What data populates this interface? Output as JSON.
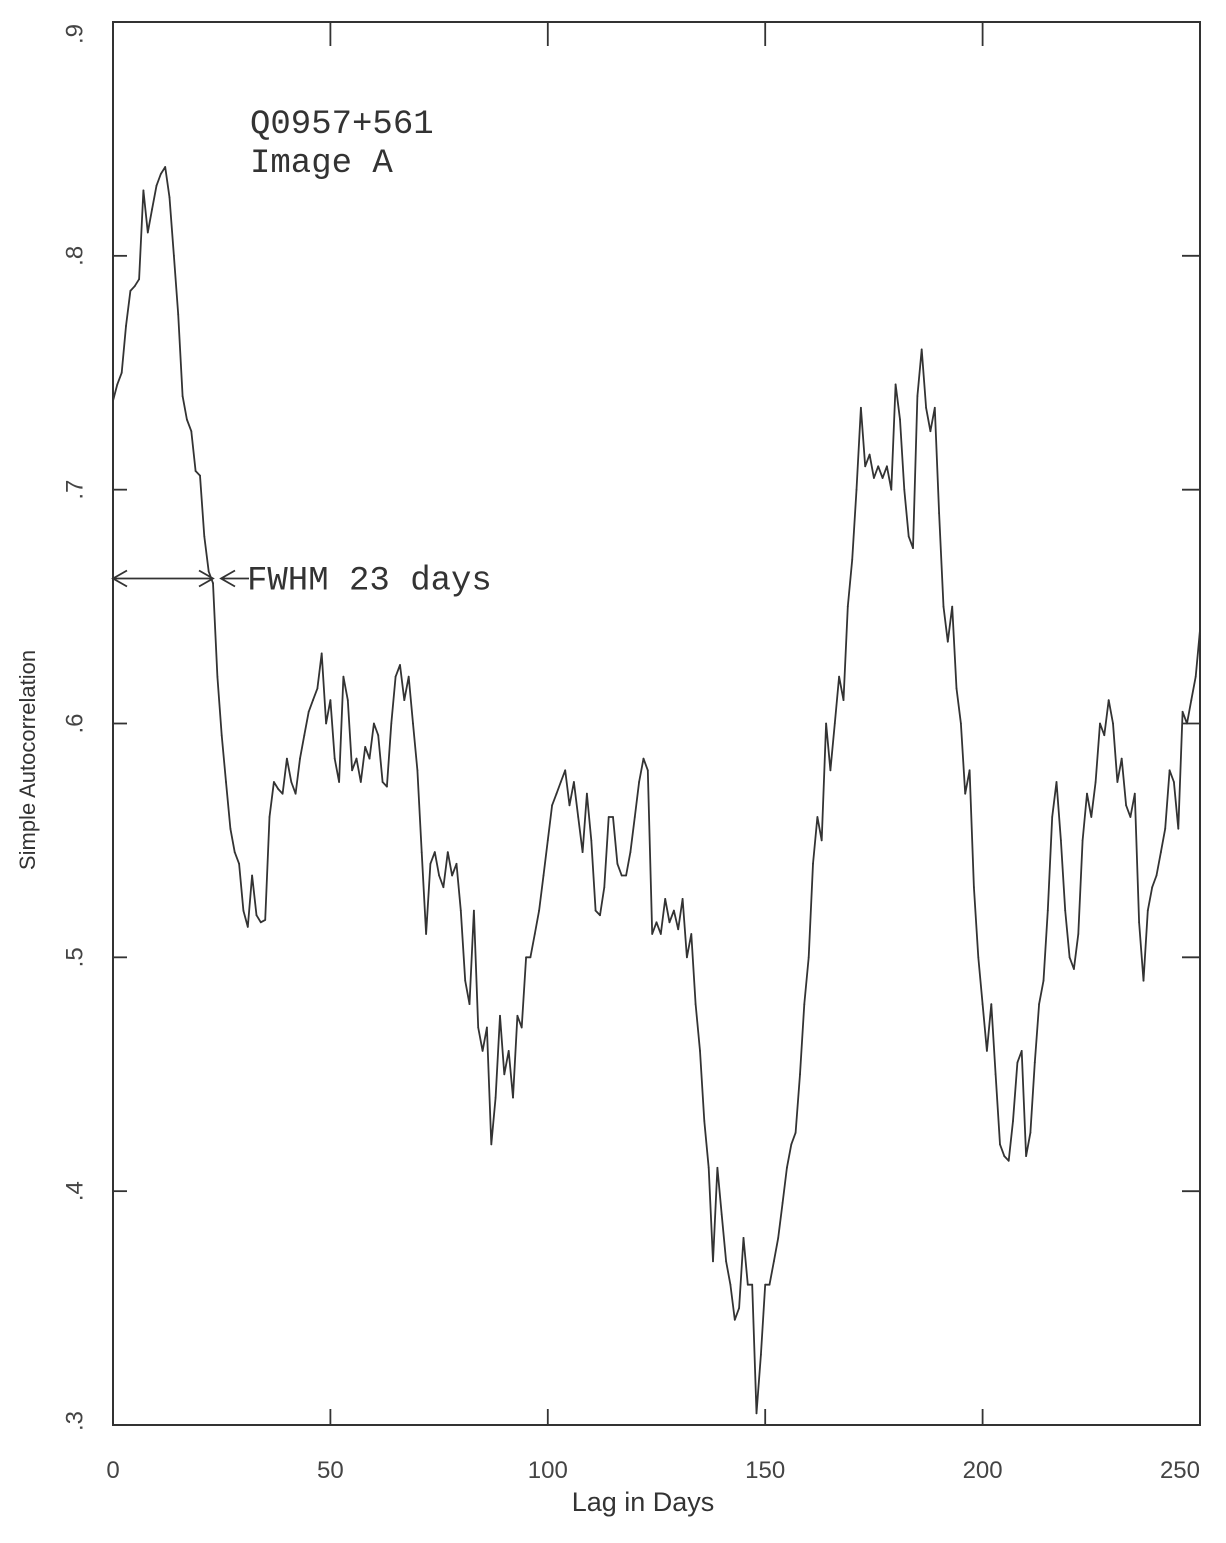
{
  "chart_data": {
    "type": "line",
    "title": "",
    "xlabel": "Lag in Days",
    "ylabel": "Simple Autocorrelation",
    "xlim": [
      0,
      250
    ],
    "ylim": [
      0.3,
      0.9
    ],
    "x_ticks": [
      0,
      50,
      100,
      150,
      200,
      250
    ],
    "x_tick_labels": [
      "0",
      "50",
      "100",
      "150",
      "200",
      "250"
    ],
    "y_ticks": [
      0.3,
      0.4,
      0.5,
      0.6,
      0.7,
      0.8,
      0.9
    ],
    "y_tick_labels": [
      ".3",
      ".4",
      ".5",
      ".6",
      ".7",
      ".8",
      ".9"
    ],
    "grid": false,
    "legend": "none",
    "annotation_lines": [
      "Q0957+561",
      "Image A"
    ],
    "fwhm_label": "FWHM 23 days",
    "fwhm_range": [
      0,
      23
    ],
    "fwhm_level": 0.662,
    "series": [
      {
        "points": [
          [
            0,
            0.738
          ],
          [
            1,
            0.745
          ],
          [
            2,
            0.75
          ],
          [
            3,
            0.77
          ],
          [
            4,
            0.785
          ],
          [
            5,
            0.787
          ],
          [
            6,
            0.79
          ],
          [
            7,
            0.828
          ],
          [
            8,
            0.81
          ],
          [
            9,
            0.82
          ],
          [
            10,
            0.83
          ],
          [
            11,
            0.835
          ],
          [
            12,
            0.838
          ],
          [
            13,
            0.825
          ],
          [
            14,
            0.8
          ],
          [
            15,
            0.775
          ],
          [
            16,
            0.74
          ],
          [
            17,
            0.73
          ],
          [
            18,
            0.725
          ],
          [
            19,
            0.708
          ],
          [
            20,
            0.706
          ],
          [
            21,
            0.68
          ],
          [
            22,
            0.665
          ],
          [
            23,
            0.66
          ],
          [
            24,
            0.62
          ],
          [
            25,
            0.595
          ],
          [
            26,
            0.575
          ],
          [
            27,
            0.555
          ],
          [
            28,
            0.545
          ],
          [
            29,
            0.54
          ],
          [
            30,
            0.52
          ],
          [
            31,
            0.513
          ],
          [
            32,
            0.535
          ],
          [
            33,
            0.518
          ],
          [
            34,
            0.515
          ],
          [
            35,
            0.516
          ],
          [
            36,
            0.56
          ],
          [
            37,
            0.575
          ],
          [
            38,
            0.572
          ],
          [
            39,
            0.57
          ],
          [
            40,
            0.585
          ],
          [
            41,
            0.575
          ],
          [
            42,
            0.57
          ],
          [
            43,
            0.585
          ],
          [
            44,
            0.595
          ],
          [
            45,
            0.605
          ],
          [
            46,
            0.61
          ],
          [
            47,
            0.615
          ],
          [
            48,
            0.63
          ],
          [
            49,
            0.6
          ],
          [
            50,
            0.61
          ],
          [
            51,
            0.585
          ],
          [
            52,
            0.575
          ],
          [
            53,
            0.62
          ],
          [
            54,
            0.61
          ],
          [
            55,
            0.58
          ],
          [
            56,
            0.585
          ],
          [
            57,
            0.575
          ],
          [
            58,
            0.59
          ],
          [
            59,
            0.585
          ],
          [
            60,
            0.6
          ],
          [
            61,
            0.595
          ],
          [
            62,
            0.575
          ],
          [
            63,
            0.573
          ],
          [
            64,
            0.6
          ],
          [
            65,
            0.62
          ],
          [
            66,
            0.625
          ],
          [
            67,
            0.61
          ],
          [
            68,
            0.62
          ],
          [
            69,
            0.6
          ],
          [
            70,
            0.58
          ],
          [
            71,
            0.545
          ],
          [
            72,
            0.51
          ],
          [
            73,
            0.54
          ],
          [
            74,
            0.545
          ],
          [
            75,
            0.535
          ],
          [
            76,
            0.53
          ],
          [
            77,
            0.545
          ],
          [
            78,
            0.535
          ],
          [
            79,
            0.54
          ],
          [
            80,
            0.52
          ],
          [
            81,
            0.49
          ],
          [
            82,
            0.48
          ],
          [
            83,
            0.52
          ],
          [
            84,
            0.47
          ],
          [
            85,
            0.46
          ],
          [
            86,
            0.47
          ],
          [
            87,
            0.42
          ],
          [
            88,
            0.44
          ],
          [
            89,
            0.475
          ],
          [
            90,
            0.45
          ],
          [
            91,
            0.46
          ],
          [
            92,
            0.44
          ],
          [
            93,
            0.475
          ],
          [
            94,
            0.47
          ],
          [
            95,
            0.5
          ],
          [
            96,
            0.5
          ],
          [
            97,
            0.51
          ],
          [
            98,
            0.52
          ],
          [
            99,
            0.535
          ],
          [
            100,
            0.55
          ],
          [
            101,
            0.565
          ],
          [
            102,
            0.57
          ],
          [
            103,
            0.575
          ],
          [
            104,
            0.58
          ],
          [
            105,
            0.565
          ],
          [
            106,
            0.575
          ],
          [
            107,
            0.56
          ],
          [
            108,
            0.545
          ],
          [
            109,
            0.57
          ],
          [
            110,
            0.55
          ],
          [
            111,
            0.52
          ],
          [
            112,
            0.518
          ],
          [
            113,
            0.53
          ],
          [
            114,
            0.56
          ],
          [
            115,
            0.56
          ],
          [
            116,
            0.54
          ],
          [
            117,
            0.535
          ],
          [
            118,
            0.535
          ],
          [
            119,
            0.545
          ],
          [
            120,
            0.56
          ],
          [
            121,
            0.575
          ],
          [
            122,
            0.585
          ],
          [
            123,
            0.58
          ],
          [
            124,
            0.51
          ],
          [
            125,
            0.515
          ],
          [
            126,
            0.51
          ],
          [
            127,
            0.525
          ],
          [
            128,
            0.515
          ],
          [
            129,
            0.52
          ],
          [
            130,
            0.512
          ],
          [
            131,
            0.525
          ],
          [
            132,
            0.5
          ],
          [
            133,
            0.51
          ],
          [
            134,
            0.48
          ],
          [
            135,
            0.46
          ],
          [
            136,
            0.43
          ],
          [
            137,
            0.41
          ],
          [
            138,
            0.37
          ],
          [
            139,
            0.41
          ],
          [
            140,
            0.39
          ],
          [
            141,
            0.37
          ],
          [
            142,
            0.36
          ],
          [
            143,
            0.345
          ],
          [
            144,
            0.35
          ],
          [
            145,
            0.38
          ],
          [
            146,
            0.36
          ],
          [
            147,
            0.36
          ],
          [
            148,
            0.305
          ],
          [
            149,
            0.33
          ],
          [
            150,
            0.36
          ],
          [
            151,
            0.36
          ],
          [
            152,
            0.37
          ],
          [
            153,
            0.38
          ],
          [
            154,
            0.395
          ],
          [
            155,
            0.41
          ],
          [
            156,
            0.42
          ],
          [
            157,
            0.425
          ],
          [
            158,
            0.45
          ],
          [
            159,
            0.48
          ],
          [
            160,
            0.5
          ],
          [
            161,
            0.54
          ],
          [
            162,
            0.56
          ],
          [
            163,
            0.55
          ],
          [
            164,
            0.6
          ],
          [
            165,
            0.58
          ],
          [
            166,
            0.6
          ],
          [
            167,
            0.62
          ],
          [
            168,
            0.61
          ],
          [
            169,
            0.65
          ],
          [
            170,
            0.67
          ],
          [
            171,
            0.7
          ],
          [
            172,
            0.735
          ],
          [
            173,
            0.71
          ],
          [
            174,
            0.715
          ],
          [
            175,
            0.705
          ],
          [
            176,
            0.71
          ],
          [
            177,
            0.705
          ],
          [
            178,
            0.71
          ],
          [
            179,
            0.7
          ],
          [
            180,
            0.745
          ],
          [
            181,
            0.73
          ],
          [
            182,
            0.7
          ],
          [
            183,
            0.68
          ],
          [
            184,
            0.675
          ],
          [
            185,
            0.74
          ],
          [
            186,
            0.76
          ],
          [
            187,
            0.735
          ],
          [
            188,
            0.725
          ],
          [
            189,
            0.735
          ],
          [
            190,
            0.69
          ],
          [
            191,
            0.65
          ],
          [
            192,
            0.635
          ],
          [
            193,
            0.65
          ],
          [
            194,
            0.615
          ],
          [
            195,
            0.6
          ],
          [
            196,
            0.57
          ],
          [
            197,
            0.58
          ],
          [
            198,
            0.53
          ],
          [
            199,
            0.5
          ],
          [
            200,
            0.48
          ],
          [
            201,
            0.46
          ],
          [
            202,
            0.48
          ],
          [
            203,
            0.45
          ],
          [
            204,
            0.42
          ],
          [
            205,
            0.415
          ],
          [
            206,
            0.413
          ],
          [
            207,
            0.43
          ],
          [
            208,
            0.455
          ],
          [
            209,
            0.46
          ],
          [
            210,
            0.415
          ],
          [
            211,
            0.425
          ],
          [
            212,
            0.455
          ],
          [
            213,
            0.48
          ],
          [
            214,
            0.49
          ],
          [
            215,
            0.52
          ],
          [
            216,
            0.56
          ],
          [
            217,
            0.575
          ],
          [
            218,
            0.55
          ],
          [
            219,
            0.52
          ],
          [
            220,
            0.5
          ],
          [
            221,
            0.495
          ],
          [
            222,
            0.51
          ],
          [
            223,
            0.55
          ],
          [
            224,
            0.57
          ],
          [
            225,
            0.56
          ],
          [
            226,
            0.575
          ],
          [
            227,
            0.6
          ],
          [
            228,
            0.595
          ],
          [
            229,
            0.61
          ],
          [
            230,
            0.6
          ],
          [
            231,
            0.575
          ],
          [
            232,
            0.585
          ],
          [
            233,
            0.565
          ],
          [
            234,
            0.56
          ],
          [
            235,
            0.57
          ],
          [
            236,
            0.515
          ],
          [
            237,
            0.49
          ],
          [
            238,
            0.52
          ],
          [
            239,
            0.53
          ],
          [
            240,
            0.535
          ],
          [
            241,
            0.545
          ],
          [
            242,
            0.555
          ],
          [
            243,
            0.58
          ],
          [
            244,
            0.575
          ],
          [
            245,
            0.555
          ],
          [
            246,
            0.605
          ],
          [
            247,
            0.6
          ],
          [
            248,
            0.61
          ],
          [
            249,
            0.62
          ],
          [
            250,
            0.64
          ]
        ]
      }
    ]
  }
}
